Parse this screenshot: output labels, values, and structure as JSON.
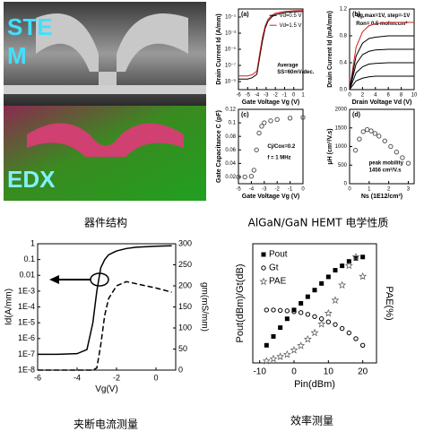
{
  "micrograph": {
    "labels": [
      "STE",
      "M",
      "EDX"
    ]
  },
  "captions": [
    "器件结构",
    "AlGaN/GaN HEMT 电学性质",
    "夹断电流测量",
    "效率测量"
  ],
  "chart_data": [
    {
      "type": "line",
      "title": "(a)",
      "xlabel": "Gate Voltage Vg (V)",
      "ylabel": "Drain Current Id (A/mm)",
      "ylog": true,
      "xlim": [
        -6,
        1
      ],
      "xticks": [
        -6,
        -5,
        -4,
        -3,
        -2,
        -1,
        0,
        1
      ],
      "ylim": [
        1e-10,
        1
      ],
      "yticks": [
        {
          "value": 1e-09,
          "label": "10⁻⁹"
        },
        {
          "value": 1e-07,
          "label": "10⁻⁷"
        },
        {
          "value": 1e-05,
          "label": "10⁻⁵"
        },
        {
          "value": 0.001,
          "label": "10⁻³"
        },
        {
          "value": 0.1,
          "label": "10⁻¹"
        }
      ],
      "x": [
        -6,
        -5,
        -4.5,
        -4,
        -3.7,
        -3.4,
        -3.1,
        -2.8,
        -2.4,
        -2,
        -1,
        0,
        1
      ],
      "series": [
        {
          "name": "Vd=0.5 V",
          "color": "#000000",
          "values": [
            2e-09,
            2e-09,
            3e-09,
            8e-09,
            1e-06,
            0.0001,
            0.004,
            0.03,
            0.1,
            0.2,
            0.35,
            0.45,
            0.5
          ]
        },
        {
          "name": "Vd=1.5 V",
          "color": "#d02020",
          "values": [
            5e-09,
            5e-09,
            7e-09,
            2e-08,
            3e-06,
            0.0003,
            0.008,
            0.05,
            0.15,
            0.3,
            0.5,
            0.6,
            0.65
          ]
        }
      ],
      "annotations": [
        "Average",
        "SS=60mV/dec."
      ]
    },
    {
      "type": "line",
      "title": "(b)",
      "xlabel": "Drain Voltage Vd (V)",
      "ylabel": "Drain Current Id (mA/mm)",
      "xlim": [
        0,
        10
      ],
      "xticks": [
        0,
        2,
        4,
        6,
        8,
        10
      ],
      "ylim": [
        0,
        1.2
      ],
      "yticks": [
        {
          "value": 0,
          "label": "0.0"
        },
        {
          "value": 0.4,
          "label": "0.4"
        },
        {
          "value": 0.8,
          "label": "0.8"
        },
        {
          "value": 1.2,
          "label": "1.2"
        }
      ],
      "x": [
        0,
        1,
        2,
        3,
        4,
        6,
        8,
        10
      ],
      "series": [
        {
          "color": "#d02020",
          "values": [
            0,
            0.63,
            0.86,
            0.95,
            0.98,
            1.0,
            1.0,
            1.0
          ]
        },
        {
          "color": "#000000",
          "values": [
            0,
            0.5,
            0.69,
            0.76,
            0.78,
            0.8,
            0.8,
            0.8
          ]
        },
        {
          "color": "#000000",
          "values": [
            0,
            0.38,
            0.52,
            0.57,
            0.59,
            0.6,
            0.6,
            0.6
          ]
        },
        {
          "color": "#000000",
          "values": [
            0,
            0.25,
            0.34,
            0.38,
            0.39,
            0.4,
            0.4,
            0.4
          ]
        },
        {
          "color": "#000000",
          "values": [
            0,
            0.13,
            0.17,
            0.19,
            0.2,
            0.2,
            0.2,
            0.2
          ]
        }
      ],
      "annotations": [
        "Vg,max=1V, step=-1V",
        "Ron= 0.5 mohm.cm²"
      ]
    },
    {
      "type": "line",
      "title": "(c)",
      "xlabel": "Gate Voltage Vg (V)",
      "ylabel": "Gate Capacitance C (pF)",
      "xlim": [
        -5,
        0
      ],
      "xticks": [
        -5,
        -4,
        -3,
        -2,
        -1,
        0
      ],
      "ylim": [
        0.01,
        0.12
      ],
      "yticks": [
        0.02,
        0.04,
        0.06,
        0.08,
        0.1,
        0.12
      ],
      "x": [
        -5,
        -4.5,
        -4,
        -3.8,
        -3.6,
        -3.4,
        -3.2,
        -3,
        -2.5,
        -2,
        -1,
        0
      ],
      "series": [
        {
          "color": "#555555",
          "marker": "circle",
          "values": [
            0.02,
            0.02,
            0.021,
            0.03,
            0.06,
            0.085,
            0.095,
            0.1,
            0.103,
            0.105,
            0.107,
            0.108
          ]
        }
      ],
      "annotations": [
        "Cj/Cox=0.2",
        "f = 1 MHz"
      ]
    },
    {
      "type": "scatter",
      "title": "(d)",
      "xlabel": "Ns (1E12/cm²)",
      "ylabel": "μH (cm²/V.s)",
      "xlim": [
        0,
        3.3
      ],
      "xticks": [
        0,
        1,
        2,
        3
      ],
      "ylim": [
        0,
        2000
      ],
      "yticks": [
        0,
        500,
        1000,
        1500,
        2000
      ],
      "x": [
        0.3,
        0.5,
        0.7,
        0.9,
        1.1,
        1.3,
        1.5,
        1.8,
        2.1,
        2.4,
        2.7,
        3.0
      ],
      "series": [
        {
          "color": "#555555",
          "marker": "circle",
          "values": [
            900,
            1200,
            1400,
            1456,
            1420,
            1350,
            1280,
            1150,
            1000,
            850,
            700,
            550
          ]
        }
      ],
      "annotations": [
        "peak mobility",
        "1456 cm²/V.s"
      ]
    },
    {
      "type": "line",
      "xlabel": "Vg(V)",
      "ylabel": "Id(A/mm)",
      "y2label": "gm(mS/mm)",
      "ylog": true,
      "xlim": [
        -6,
        1
      ],
      "xticks": [
        -6,
        -4,
        -2,
        0
      ],
      "ylim": [
        1e-08,
        1
      ],
      "yticks": [
        {
          "value": 1e-08,
          "label": "1E-8"
        },
        {
          "value": 1e-07,
          "label": "1E-7"
        },
        {
          "value": 1e-06,
          "label": "1E-6"
        },
        {
          "value": 1e-05,
          "label": "1E-5"
        },
        {
          "value": 0.0001,
          "label": "1E-4"
        },
        {
          "value": 0.001,
          "label": "1E-3"
        },
        {
          "value": 0.01,
          "label": "0.01"
        },
        {
          "value": 0.1,
          "label": "0.1"
        },
        1
      ],
      "y2lim": [
        0,
        300
      ],
      "y2ticks": [
        0,
        50,
        100,
        150,
        200,
        250,
        300
      ],
      "x": [
        -6,
        -5,
        -4,
        -3.5,
        -3.2,
        -3,
        -2.8,
        -2.6,
        -2.4,
        -2,
        -1.5,
        -1,
        0,
        0.8
      ],
      "series": [
        {
          "color": "#000000",
          "values": [
            1e-07,
            1e-07,
            1.1e-07,
            2e-07,
            1e-05,
            0.001,
            0.03,
            0.1,
            0.2,
            0.35,
            0.5,
            0.6,
            0.7,
            0.75
          ]
        },
        {
          "color": "#000000",
          "dash": true,
          "axis": "y2",
          "values": [
            0,
            0,
            0,
            0,
            0,
            5,
            60,
            130,
            170,
            200,
            210,
            205,
            195,
            185
          ]
        }
      ]
    },
    {
      "type": "line",
      "xlabel": "Pin(dBm)",
      "ylabel": "Pout(dBm)/Gt(dB)",
      "y2label": "PAE(%)",
      "xlim": [
        -12,
        24
      ],
      "xticks": [
        -10,
        0,
        10,
        20
      ],
      "ylim": [
        0,
        27
      ],
      "y2lim": [
        0,
        55
      ],
      "x": [
        -8,
        -6,
        -4,
        -2,
        0,
        2,
        4,
        6,
        8,
        10,
        12,
        14,
        16,
        18,
        20
      ],
      "series": [
        {
          "name": "Pout",
          "color": "#000000",
          "marker": "square",
          "values": [
            4,
            6,
            8,
            10,
            12,
            13.5,
            15,
            16.5,
            18,
            19.5,
            21,
            22,
            23,
            23.7,
            24
          ]
        },
        {
          "name": "Gt",
          "color": "#000000",
          "marker": "circle",
          "values": [
            12,
            12,
            11.9,
            11.8,
            11.6,
            11.4,
            11,
            10.5,
            10,
            9.3,
            8.7,
            7.8,
            6.8,
            5.5,
            4
          ]
        },
        {
          "name": "PAE",
          "color": "#555555",
          "marker": "star",
          "axis": "y2",
          "values": [
            1,
            2,
            3,
            4,
            6,
            8,
            11,
            14,
            18,
            23,
            29,
            36,
            45,
            49,
            40
          ]
        }
      ]
    }
  ]
}
